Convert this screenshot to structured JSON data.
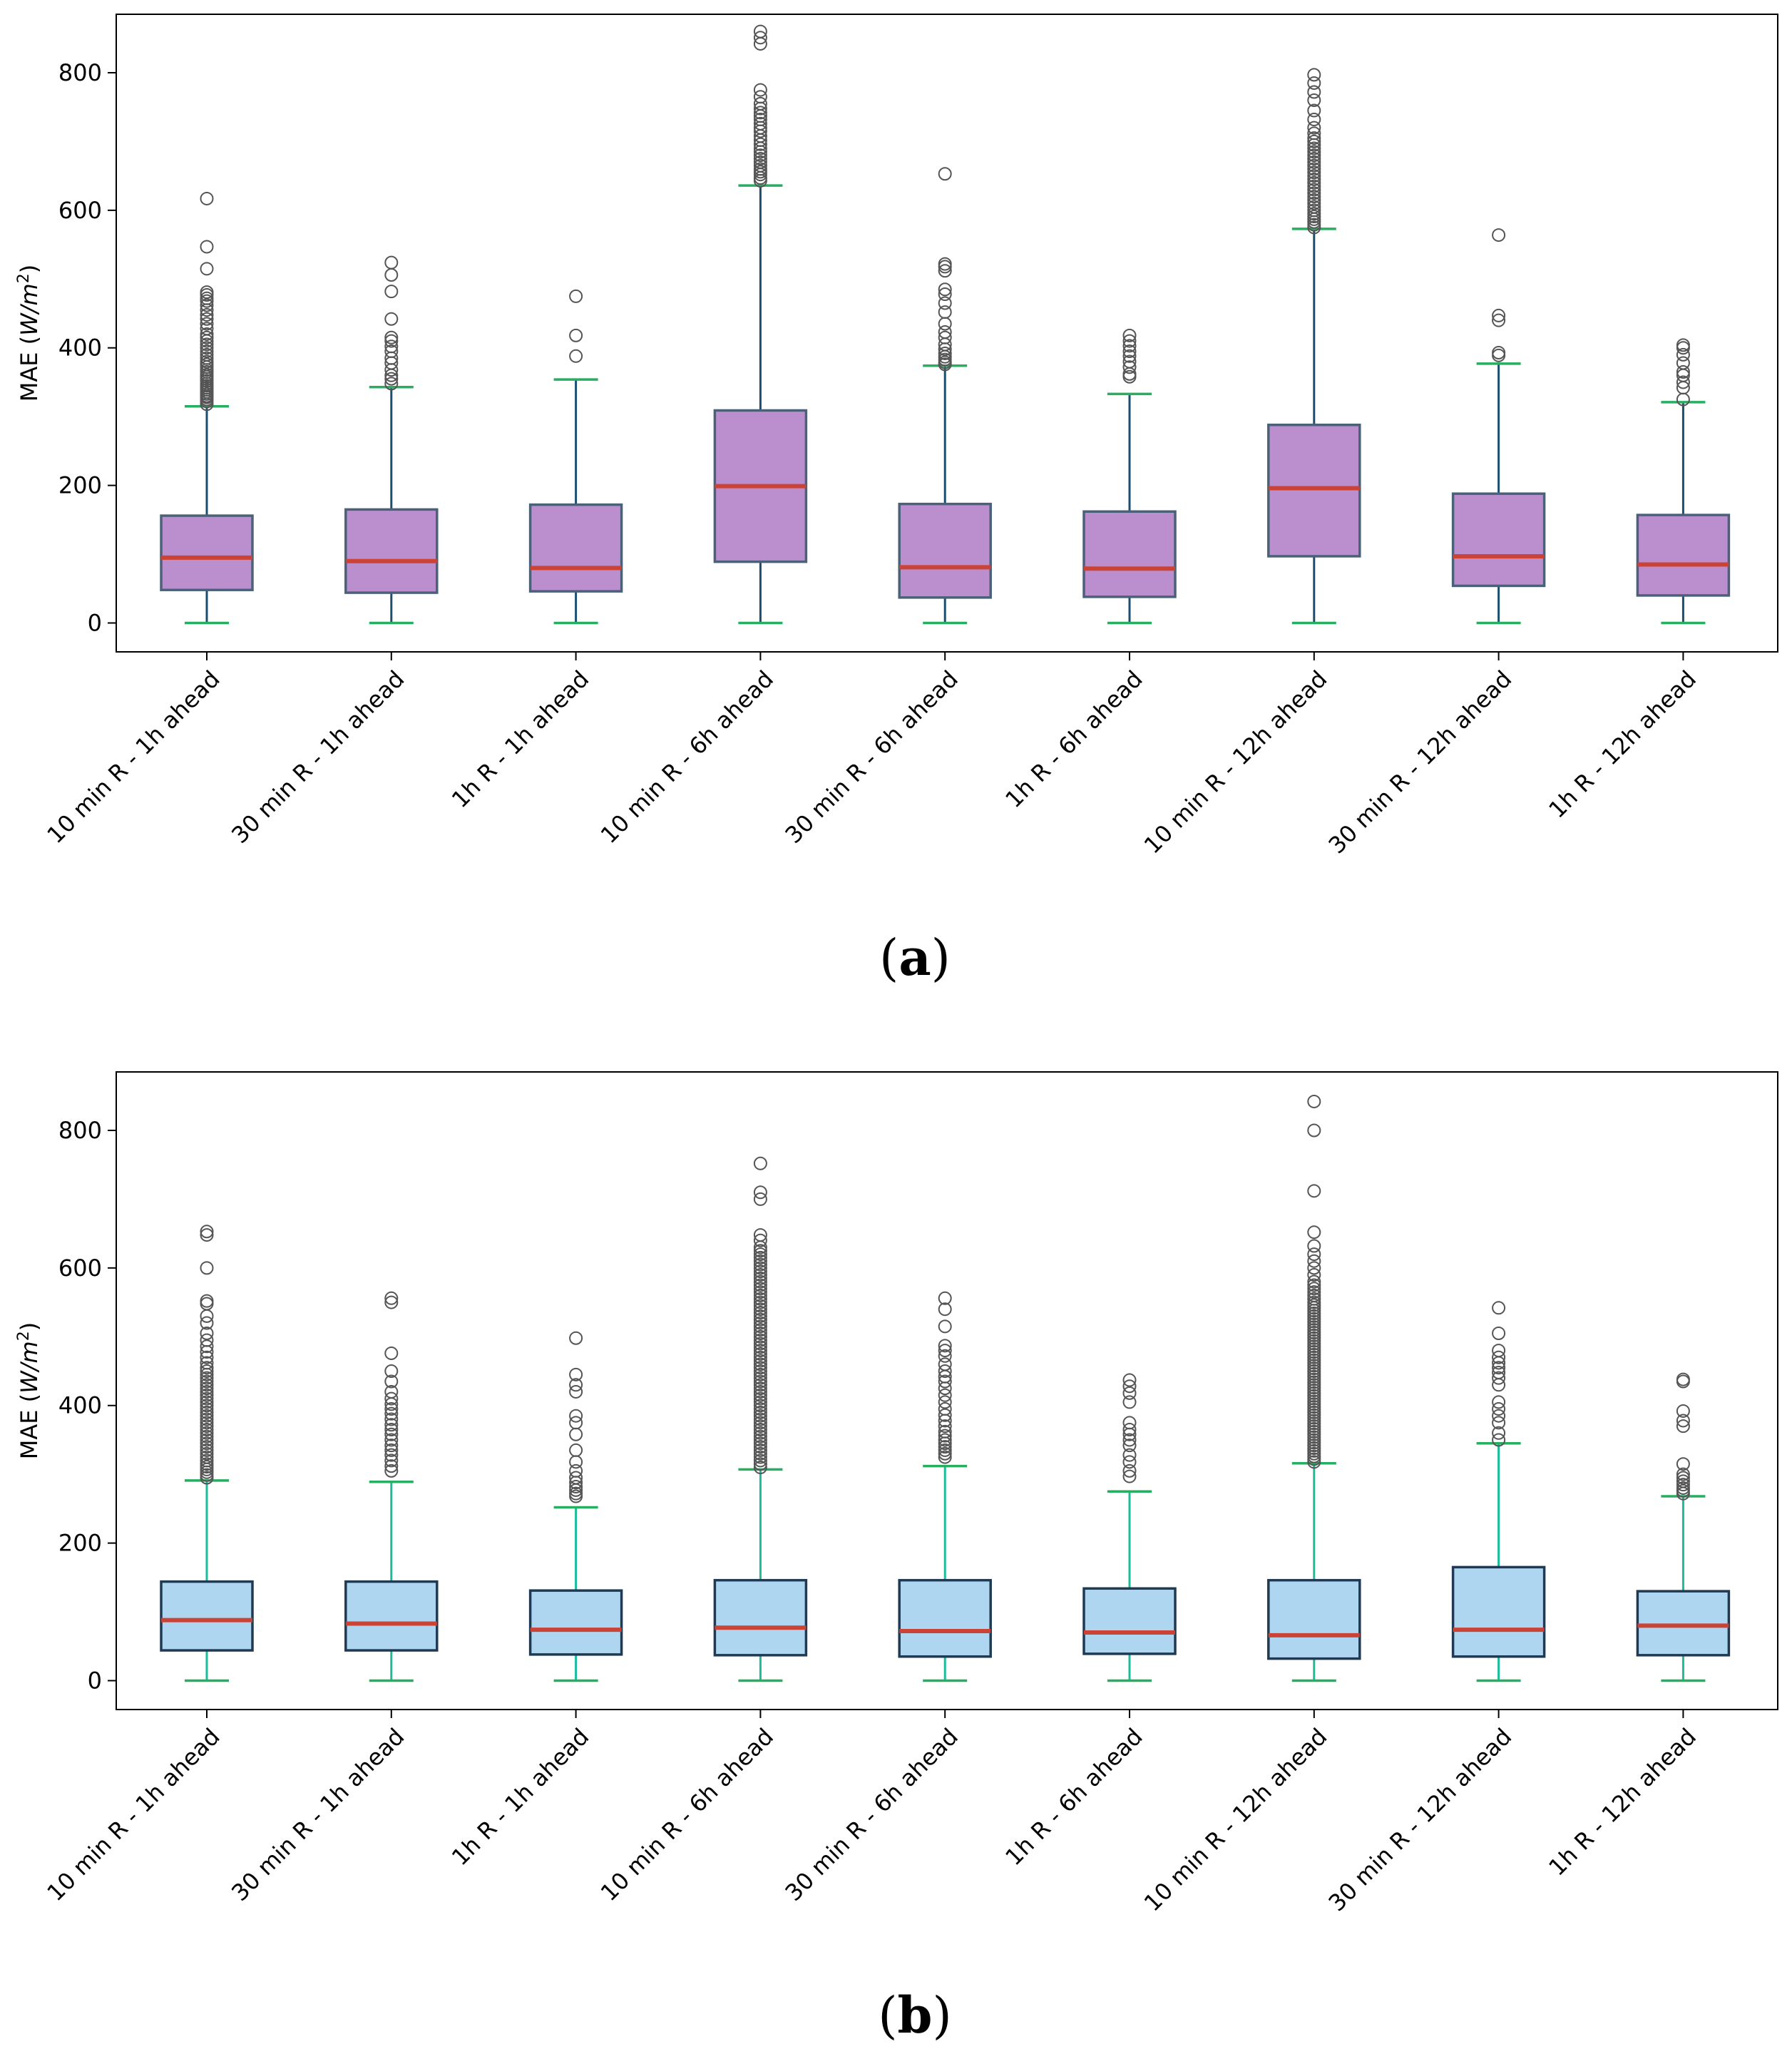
{
  "figure": {
    "ylabel_prefix": "MAE (",
    "ylabel_unit_base": "W",
    "ylabel_unit_sep": "/",
    "ylabel_unit_var": "m",
    "ylabel_unit_exp": "2",
    "ylabel_suffix": ")"
  },
  "chart_data": [
    {
      "type": "box",
      "panel_label": "a",
      "caption_open": "(",
      "caption_close": ")",
      "ylabel": "MAE (W/m²)",
      "ylim": [
        -42,
        885
      ],
      "yticks": [
        0,
        200,
        400,
        600,
        800
      ],
      "categories": [
        "10 min R - 1h ahead",
        "30 min R - 1h ahead",
        "1h R - 1h ahead",
        "10 min R - 6h ahead",
        "30 min R - 6h ahead",
        "1h R - 6h ahead",
        "10 min R - 12h ahead",
        "30 min R - 12h ahead",
        "1h R - 12h ahead"
      ],
      "colors": {
        "box_fill": "#bb8fce",
        "box_edge": "#4a6179",
        "whisker": "#1b4f72",
        "cap": "#27ae60",
        "median": "#cb4335",
        "flier": "#555555"
      },
      "boxes": [
        {
          "q1": 48,
          "median": 95,
          "q3": 156,
          "whislo": 0,
          "whishi": 315,
          "fliers": [
            318,
            322,
            325,
            328,
            330,
            333,
            336,
            339,
            342,
            345,
            348,
            352,
            355,
            358,
            361,
            365,
            368,
            372,
            376,
            380,
            385,
            390,
            395,
            400,
            405,
            410,
            415,
            420,
            428,
            435,
            442,
            448,
            455,
            462,
            468,
            472,
            477,
            481,
            515,
            547,
            617
          ]
        },
        {
          "q1": 44,
          "median": 90,
          "q3": 165,
          "whislo": 0,
          "whishi": 343,
          "fliers": [
            348,
            355,
            360,
            368,
            378,
            385,
            395,
            402,
            410,
            415,
            442,
            482,
            506,
            524
          ]
        },
        {
          "q1": 46,
          "median": 80,
          "q3": 172,
          "whislo": 0,
          "whishi": 354,
          "fliers": [
            388,
            418,
            475
          ]
        },
        {
          "q1": 89,
          "median": 199,
          "q3": 309,
          "whislo": 0,
          "whishi": 636,
          "fliers": [
            643,
            647,
            652,
            656,
            660,
            665,
            670,
            675,
            680,
            685,
            690,
            696,
            702,
            708,
            715,
            720,
            726,
            732,
            737,
            742,
            748,
            755,
            765,
            775,
            842,
            851,
            860
          ]
        },
        {
          "q1": 37,
          "median": 81,
          "q3": 173,
          "whislo": 0,
          "whishi": 374,
          "fliers": [
            376,
            379,
            383,
            387,
            392,
            398,
            405,
            415,
            423,
            435,
            452,
            465,
            478,
            485,
            512,
            518,
            522,
            653
          ]
        },
        {
          "q1": 38,
          "median": 79,
          "q3": 162,
          "whislo": 0,
          "whishi": 333,
          "fliers": [
            358,
            362,
            372,
            380,
            388,
            395,
            403,
            410,
            418
          ]
        },
        {
          "q1": 97,
          "median": 196,
          "q3": 288,
          "whislo": 0,
          "whishi": 573,
          "fliers": [
            575,
            579,
            583,
            587,
            591,
            595,
            600,
            605,
            610,
            615,
            620,
            625,
            630,
            635,
            640,
            645,
            650,
            655,
            660,
            665,
            670,
            675,
            680,
            685,
            690,
            695,
            700,
            705,
            712,
            720,
            732,
            745,
            760,
            772,
            785,
            797
          ]
        },
        {
          "q1": 54,
          "median": 97,
          "q3": 188,
          "whislo": 0,
          "whishi": 377,
          "fliers": [
            389,
            393,
            440,
            447,
            564
          ]
        },
        {
          "q1": 40,
          "median": 85,
          "q3": 157,
          "whislo": 0,
          "whishi": 321,
          "fliers": [
            325,
            342,
            350,
            360,
            365,
            378,
            390,
            400,
            404
          ]
        }
      ]
    },
    {
      "type": "box",
      "panel_label": "b",
      "caption_open": "(",
      "caption_close": ")",
      "ylabel": "MAE (W/m²)",
      "ylim": [
        -42,
        885
      ],
      "yticks": [
        0,
        200,
        400,
        600,
        800
      ],
      "categories": [
        "10 min R - 1h ahead",
        "30 min R - 1h ahead",
        "1h R - 1h ahead",
        "10 min R - 6h ahead",
        "30 min R - 6h ahead",
        "1h R - 6h ahead",
        "10 min R - 12h ahead",
        "30 min R - 12h ahead",
        "1h R - 12h ahead"
      ],
      "colors": {
        "box_fill": "#aed6f1",
        "box_edge": "#1f3a52",
        "whisker": "#1abc9c",
        "cap": "#27ae60",
        "median": "#cb4335",
        "flier": "#555555"
      },
      "boxes": [
        {
          "q1": 44,
          "median": 88,
          "q3": 144,
          "whislo": 0,
          "whishi": 291,
          "fliers": [
            295,
            299,
            303,
            307,
            311,
            315,
            320,
            325,
            330,
            335,
            340,
            345,
            350,
            355,
            360,
            365,
            370,
            375,
            380,
            385,
            390,
            395,
            400,
            405,
            410,
            415,
            420,
            425,
            430,
            435,
            440,
            445,
            450,
            455,
            462,
            470,
            478,
            486,
            495,
            505,
            520,
            530,
            548,
            552,
            600,
            648,
            653
          ]
        },
        {
          "q1": 44,
          "median": 83,
          "q3": 144,
          "whislo": 0,
          "whishi": 289,
          "fliers": [
            305,
            312,
            320,
            328,
            335,
            342,
            350,
            358,
            365,
            372,
            380,
            388,
            395,
            402,
            410,
            420,
            435,
            450,
            476,
            550,
            556
          ]
        },
        {
          "q1": 38,
          "median": 74,
          "q3": 131,
          "whislo": 0,
          "whishi": 252,
          "fliers": [
            268,
            272,
            277,
            282,
            288,
            295,
            305,
            318,
            335,
            358,
            375,
            385,
            420,
            430,
            445,
            498
          ]
        },
        {
          "q1": 37,
          "median": 77,
          "q3": 146,
          "whislo": 0,
          "whishi": 307,
          "fliers": [
            310,
            315,
            320,
            325,
            330,
            335,
            340,
            345,
            350,
            355,
            360,
            365,
            370,
            375,
            380,
            385,
            390,
            395,
            400,
            405,
            410,
            415,
            420,
            425,
            430,
            435,
            440,
            445,
            450,
            455,
            460,
            465,
            470,
            475,
            480,
            485,
            490,
            495,
            500,
            505,
            510,
            515,
            520,
            525,
            530,
            535,
            540,
            545,
            550,
            555,
            560,
            565,
            570,
            575,
            580,
            585,
            590,
            595,
            600,
            605,
            610,
            615,
            620,
            625,
            630,
            640,
            648,
            700,
            710,
            752
          ]
        },
        {
          "q1": 35,
          "median": 72,
          "q3": 146,
          "whislo": 0,
          "whishi": 312,
          "fliers": [
            325,
            330,
            335,
            340,
            345,
            350,
            356,
            362,
            370,
            378,
            386,
            395,
            405,
            415,
            425,
            435,
            442,
            450,
            460,
            472,
            480,
            487,
            515,
            540,
            556
          ]
        },
        {
          "q1": 39,
          "median": 70,
          "q3": 134,
          "whislo": 0,
          "whishi": 275,
          "fliers": [
            297,
            305,
            318,
            328,
            342,
            350,
            358,
            365,
            375,
            405,
            418,
            428,
            437
          ]
        },
        {
          "q1": 32,
          "median": 66,
          "q3": 146,
          "whislo": 0,
          "whishi": 316,
          "fliers": [
            318,
            322,
            326,
            330,
            334,
            338,
            342,
            346,
            350,
            354,
            358,
            362,
            366,
            370,
            374,
            378,
            382,
            386,
            390,
            394,
            398,
            402,
            406,
            410,
            414,
            418,
            422,
            426,
            430,
            434,
            438,
            442,
            446,
            450,
            454,
            458,
            462,
            466,
            470,
            474,
            478,
            482,
            486,
            490,
            494,
            498,
            502,
            506,
            510,
            514,
            518,
            522,
            526,
            530,
            534,
            538,
            542,
            546,
            550,
            555,
            560,
            565,
            570,
            575,
            580,
            590,
            600,
            610,
            620,
            632,
            652,
            712,
            800,
            842
          ]
        },
        {
          "q1": 35,
          "median": 74,
          "q3": 165,
          "whislo": 0,
          "whishi": 345,
          "fliers": [
            350,
            360,
            375,
            385,
            395,
            405,
            430,
            440,
            448,
            455,
            462,
            470,
            480,
            505,
            542
          ]
        },
        {
          "q1": 37,
          "median": 80,
          "q3": 130,
          "whislo": 0,
          "whishi": 268,
          "fliers": [
            272,
            276,
            280,
            285,
            290,
            295,
            300,
            315,
            370,
            378,
            392,
            435,
            438
          ]
        }
      ]
    }
  ]
}
